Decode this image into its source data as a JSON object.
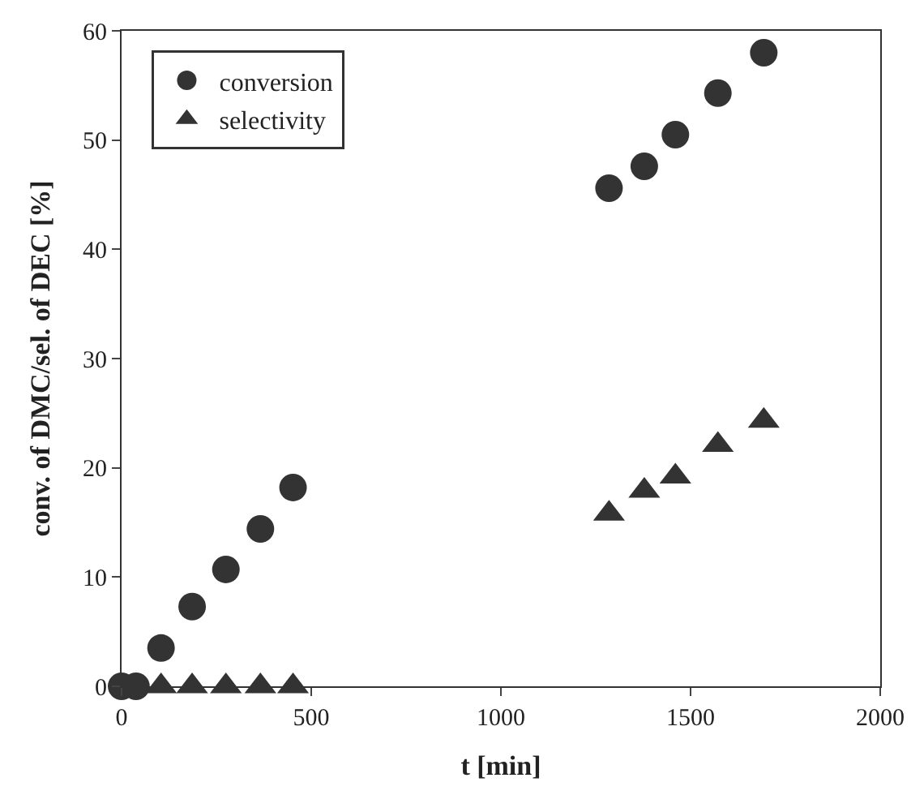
{
  "chart_data": {
    "type": "scatter",
    "xlabel": "t [min]",
    "ylabel": "conv. of DMC/sel. of DEC [%]",
    "xlim": [
      0,
      2000
    ],
    "xticks": [
      0,
      500,
      1000,
      1500,
      2000
    ],
    "ylim": [
      0,
      60
    ],
    "yticks": [
      0,
      10,
      20,
      30,
      40,
      50,
      60
    ],
    "legend": "top left",
    "series": [
      {
        "name": "conversion",
        "color": "#333333",
        "marker": "circle",
        "x": [
          0,
          38,
          104,
          186,
          275,
          366,
          452,
          1285,
          1378,
          1460,
          1572,
          1693
        ],
        "values": [
          0,
          0,
          3.5,
          7.3,
          10.7,
          14.4,
          18.2,
          45.6,
          47.6,
          50.5,
          54.3,
          58.0
        ]
      },
      {
        "name": "selectivity",
        "color": "#333333",
        "marker": "triangle",
        "x": [
          104,
          186,
          275,
          366,
          452,
          1285,
          1378,
          1460,
          1572,
          1693
        ],
        "values": [
          0,
          0,
          0,
          0,
          0,
          15.8,
          17.9,
          19.2,
          22.1,
          24.3
        ]
      }
    ]
  }
}
